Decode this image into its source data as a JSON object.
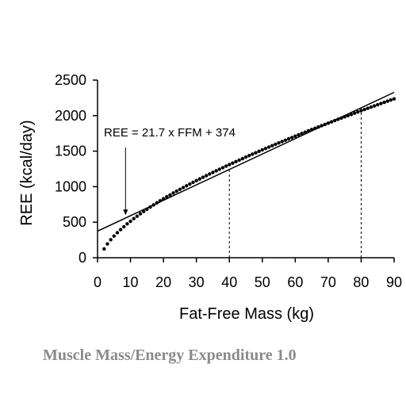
{
  "chart_data": {
    "type": "scatter",
    "xlabel": "Fat-Free Mass (kg)",
    "ylabel": "REE (kcal/day)",
    "xlim": [
      0,
      90
    ],
    "ylim": [
      0,
      2500
    ],
    "x_ticks": [
      0,
      10,
      20,
      30,
      40,
      50,
      60,
      70,
      80,
      90
    ],
    "y_ticks": [
      0,
      500,
      1000,
      1500,
      2000,
      2500
    ],
    "grid": false,
    "annotation": "REE = 21.7 x FFM + 374",
    "annotation_arrow_target": {
      "x": 8.5,
      "y": 600
    },
    "fit_line": {
      "slope": 21.7,
      "intercept": 374,
      "x_range": [
        0,
        90
      ]
    },
    "reference_lines": [
      {
        "x": 40,
        "y_top": 1242,
        "style": "dashed"
      },
      {
        "x": 80,
        "y_top": 2110,
        "style": "dashed"
      }
    ],
    "series": [
      {
        "style": "dots",
        "x": [
          2,
          3,
          4,
          5,
          6,
          7,
          8,
          9,
          10,
          11,
          12,
          13,
          14,
          15,
          16,
          17,
          18,
          19,
          20,
          21,
          22,
          23,
          24,
          25,
          26,
          27,
          28,
          29,
          30,
          31,
          32,
          33,
          34,
          35,
          36,
          37,
          38,
          39,
          40,
          41,
          42,
          43,
          44,
          45,
          46,
          47,
          48,
          49,
          50,
          51,
          52,
          53,
          54,
          55,
          56,
          57,
          58,
          59,
          60,
          61,
          62,
          63,
          64,
          65,
          66,
          67,
          68,
          69,
          70,
          71,
          72,
          73,
          74,
          75,
          76,
          77,
          78,
          79,
          80,
          81,
          82,
          83,
          84,
          85,
          86,
          87,
          88,
          89,
          90
        ],
        "y": [
          124,
          195,
          253,
          305,
          352,
          395,
          436,
          476,
          513,
          550,
          584,
          618,
          651,
          682,
          713,
          743,
          773,
          801,
          829,
          857,
          884,
          911,
          937,
          962,
          987,
          1012,
          1037,
          1061,
          1085,
          1109,
          1132,
          1155,
          1178,
          1201,
          1223,
          1245,
          1267,
          1289,
          1311,
          1332,
          1353,
          1374,
          1395,
          1416,
          1437,
          1457,
          1477,
          1498,
          1518,
          1538,
          1557,
          1577,
          1597,
          1616,
          1635,
          1654,
          1674,
          1692,
          1711,
          1730,
          1749,
          1767,
          1786,
          1804,
          1822,
          1840,
          1859,
          1876,
          1894,
          1912,
          1930,
          1948,
          1965,
          1983,
          2000,
          2017,
          2034,
          2052,
          2069,
          2086,
          2103,
          2120,
          2136,
          2153,
          2170,
          2187,
          2203,
          2220,
          2236
        ]
      }
    ]
  },
  "caption": "Muscle Mass/Energy Expenditure 1.0"
}
